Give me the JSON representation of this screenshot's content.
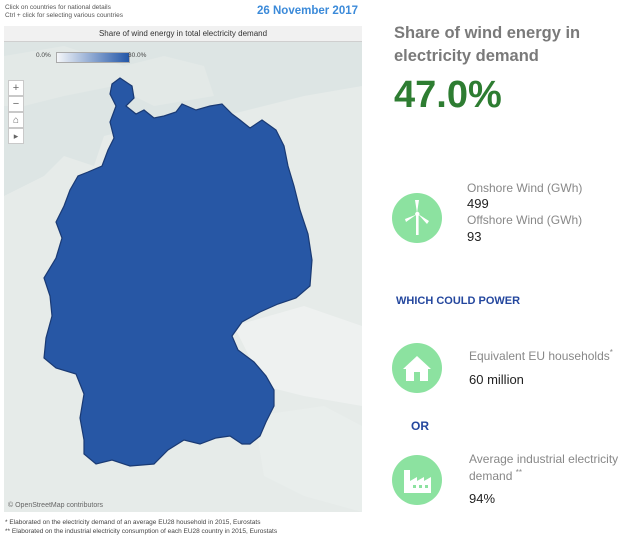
{
  "header": {
    "hint_line1": "Click on countries for national details",
    "hint_line2": "Ctrl + click  for selecting various countries",
    "date": "26 November 2017"
  },
  "map": {
    "title": "Share of wind energy in total electricity demand",
    "legend_min": "0.0%",
    "legend_max": "30.0%",
    "attribution": "© OpenStreetMap contributors",
    "controls": [
      "+",
      "−",
      "⌂",
      "▸"
    ],
    "fill_color": "#2757a5",
    "country": "Germany"
  },
  "summary": {
    "title": "Share of wind energy in electricity demand",
    "share_value": "47.0%"
  },
  "wind": {
    "onshore_label": "Onshore Wind (GWh)",
    "onshore_value": "499",
    "offshore_label": "Offshore Wind (GWh)",
    "offshore_value": "93"
  },
  "could_power": "WHICH COULD POWER",
  "households": {
    "label": "Equivalent EU households",
    "mark": "*",
    "value": "60 million"
  },
  "or_label": "OR",
  "industry": {
    "label_line1": "Average industrial electricity",
    "label_line2": "demand",
    "mark": "**",
    "value": "94%"
  },
  "footnotes": {
    "note1": "* Elaborated on the electricity demand of an average EU28 household in 2015, Eurostats",
    "note2": "** Elaborated on the industrial electricity consumption of each EU28 country in 2015, Eurostats"
  },
  "icons": [
    "wind-turbine-icon",
    "house-icon",
    "factory-icon",
    "home-icon",
    "play-icon"
  ]
}
